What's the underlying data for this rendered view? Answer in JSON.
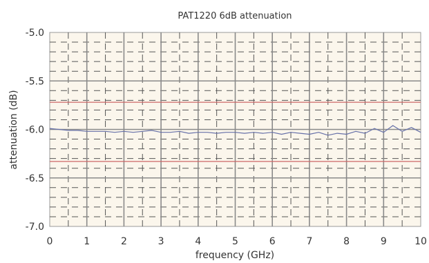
{
  "chart_data": {
    "type": "line",
    "title": "PAT1220 6dB attenuation",
    "xlabel": "frequency (GHz)",
    "ylabel": "attenuation (dB)",
    "xlim": [
      0,
      10
    ],
    "ylim": [
      -7.0,
      -5.0
    ],
    "x_ticks": [
      "0",
      "1",
      "2",
      "3",
      "4",
      "5",
      "6",
      "7",
      "8",
      "9",
      "10"
    ],
    "y_ticks": [
      "-5.0",
      "-5.5",
      "-6.0",
      "-6.5",
      "-7.0"
    ],
    "grid": true,
    "reference_lines": [
      {
        "y": -5.72,
        "color": "#cc6666"
      },
      {
        "y": -6.33,
        "color": "#cc6666"
      }
    ],
    "series": [
      {
        "color": "#6670a8",
        "x": [
          0,
          0.25,
          0.5,
          0.75,
          1.0,
          1.25,
          1.5,
          1.75,
          2.0,
          2.25,
          2.5,
          2.75,
          3.0,
          3.25,
          3.5,
          3.75,
          4.0,
          4.25,
          4.5,
          4.75,
          5.0,
          5.25,
          5.5,
          5.75,
          6.0,
          6.25,
          6.5,
          6.75,
          7.0,
          7.25,
          7.5,
          7.75,
          8.0,
          8.25,
          8.5,
          8.75,
          9.0,
          9.25,
          9.5,
          9.75,
          10.0
        ],
        "y": [
          -5.99,
          -6.0,
          -6.01,
          -6.01,
          -6.02,
          -6.02,
          -6.02,
          -6.03,
          -6.02,
          -6.03,
          -6.02,
          -6.01,
          -6.03,
          -6.03,
          -6.02,
          -6.04,
          -6.03,
          -6.03,
          -6.04,
          -6.03,
          -6.03,
          -6.04,
          -6.03,
          -6.04,
          -6.03,
          -6.05,
          -6.03,
          -6.04,
          -6.05,
          -6.03,
          -6.06,
          -6.04,
          -6.05,
          -6.02,
          -6.04,
          -5.99,
          -6.03,
          -5.96,
          -6.02,
          -5.98,
          -6.03
        ]
      }
    ]
  }
}
